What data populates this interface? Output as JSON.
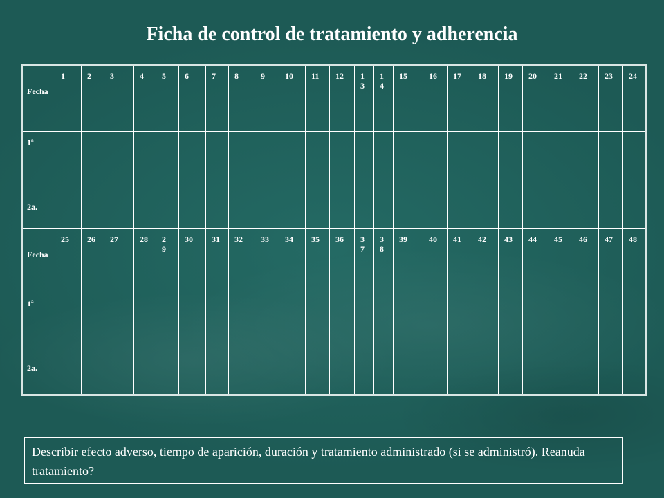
{
  "title": "Ficha de control de tratamiento y adherencia",
  "table": {
    "fecha_label": "Fecha",
    "dose_1": "1ª",
    "dose_2": "2a.",
    "row1_days": [
      "1",
      "2",
      "3",
      "4",
      "5",
      "6",
      "7",
      "8",
      "9",
      "10",
      "11",
      "12",
      "13",
      "14",
      "15",
      "16",
      "17",
      "18",
      "19",
      "20",
      "21",
      "22",
      "23",
      "24"
    ],
    "row2_days": [
      "25",
      "26",
      "27",
      "28",
      "29",
      "30",
      "31",
      "32",
      "33",
      "34",
      "35",
      "36",
      "37",
      "38",
      "39",
      "40",
      "41",
      "42",
      "43",
      "44",
      "45",
      "46",
      "47",
      "48"
    ]
  },
  "note": "Describir efecto adverso, tiempo de aparición, duración y tratamiento administrado (si se administró). Reanuda tratamiento?"
}
